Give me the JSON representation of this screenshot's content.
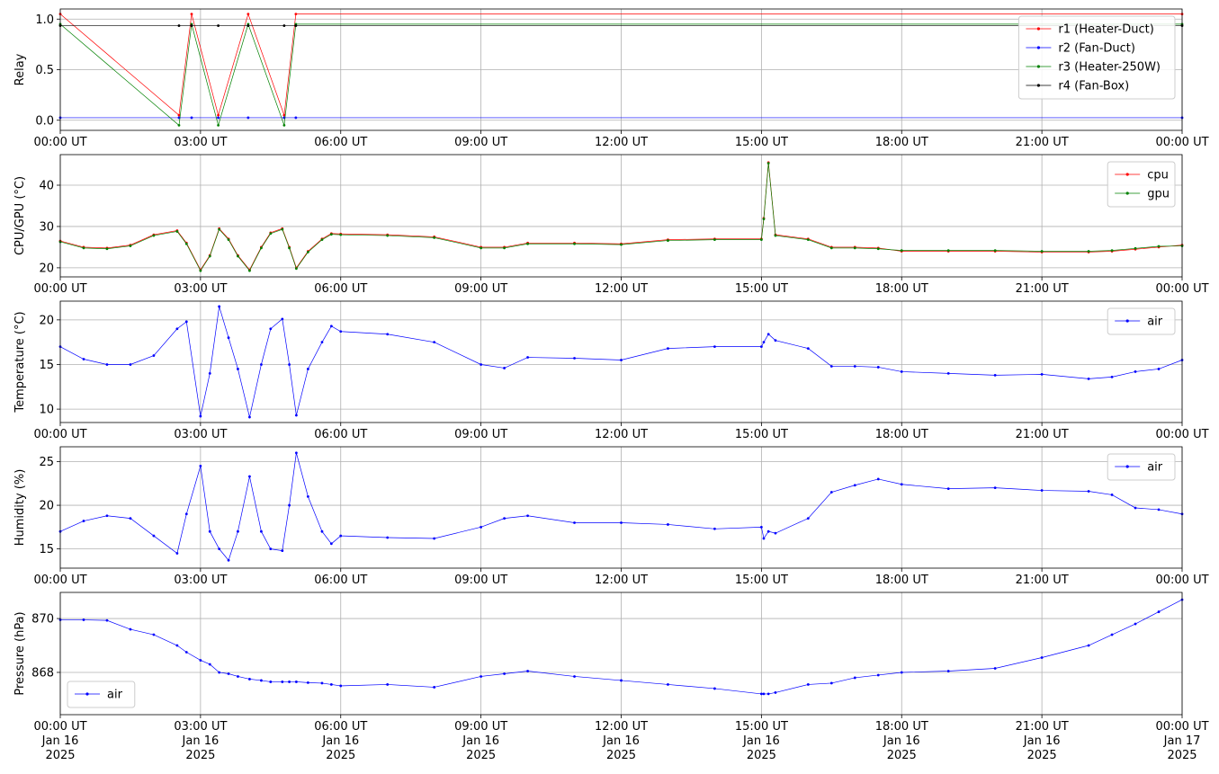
{
  "chart_data": [
    {
      "type": "line",
      "ylabel": "Relay",
      "legend": "upper right",
      "grid": true,
      "x": [
        0,
        2.54,
        2.81,
        3.38,
        4.02,
        4.79,
        5.04,
        24
      ],
      "xlim": [
        0,
        24
      ],
      "xticks": [
        {
          "value": 0,
          "label": "00:00 UT"
        },
        {
          "value": 3,
          "label": "03:00 UT"
        },
        {
          "value": 6,
          "label": "06:00 UT"
        },
        {
          "value": 9,
          "label": "09:00 UT"
        },
        {
          "value": 12,
          "label": "12:00 UT"
        },
        {
          "value": 15,
          "label": "15:00 UT"
        },
        {
          "value": 18,
          "label": "18:00 UT"
        },
        {
          "value": 21,
          "label": "21:00 UT"
        },
        {
          "value": 24,
          "label": "00:00 UT"
        }
      ],
      "ylim": [
        -0.1,
        1.1
      ],
      "yticks": [
        {
          "value": 0,
          "label": "0.0"
        },
        {
          "value": 0.5,
          "label": "0.5"
        },
        {
          "value": 1,
          "label": "1.0"
        }
      ],
      "series": [
        {
          "name": "r1 (Heater-Duct)",
          "color": "#ff0000",
          "values": [
            1.05,
            0.05,
            1.05,
            0.05,
            1.05,
            0.05,
            1.05,
            1.05
          ]
        },
        {
          "name": "r2 (Fan-Duct)",
          "color": "#0000ff",
          "values": [
            0.025,
            0.025,
            0.025,
            0.025,
            0.025,
            0.025,
            0.025,
            0.025
          ]
        },
        {
          "name": "r3 (Heater-250W)",
          "color": "#008000",
          "values": [
            0.95,
            -0.05,
            0.95,
            -0.05,
            0.95,
            -0.05,
            0.95,
            0.95
          ]
        },
        {
          "name": "r4 (Fan-Box)",
          "color": "#000000",
          "values": [
            0.935,
            0.935,
            0.935,
            0.935,
            0.935,
            0.935,
            0.935,
            0.935
          ]
        }
      ]
    },
    {
      "type": "line",
      "ylabel": "CPU/GPU (°C)",
      "legend": "upper right",
      "grid": true,
      "x": [
        0,
        0.5,
        1,
        1.5,
        2,
        2.5,
        2.7,
        3,
        3.2,
        3.4,
        3.6,
        3.8,
        4.05,
        4.3,
        4.5,
        4.75,
        4.9,
        5.05,
        5.3,
        5.6,
        5.8,
        6,
        7,
        8,
        9,
        9.5,
        10,
        11,
        12,
        13,
        14,
        15,
        15.05,
        15.15,
        15.3,
        16,
        16.5,
        17,
        17.5,
        18,
        19,
        20,
        21,
        22,
        22.5,
        23,
        23.5,
        24
      ],
      "xlim": [
        0,
        24
      ],
      "xticks": [
        {
          "value": 0,
          "label": "00:00 UT"
        },
        {
          "value": 3,
          "label": "03:00 UT"
        },
        {
          "value": 6,
          "label": "06:00 UT"
        },
        {
          "value": 9,
          "label": "09:00 UT"
        },
        {
          "value": 12,
          "label": "12:00 UT"
        },
        {
          "value": 15,
          "label": "15:00 UT"
        },
        {
          "value": 18,
          "label": "18:00 UT"
        },
        {
          "value": 21,
          "label": "21:00 UT"
        },
        {
          "value": 24,
          "label": "00:00 UT"
        }
      ],
      "ylim": [
        17.8,
        47.4
      ],
      "yticks": [
        20,
        30,
        40
      ],
      "series": [
        {
          "name": "cpu",
          "color": "#ff0000",
          "values": [
            26.5,
            25,
            24.8,
            25.5,
            28,
            29,
            26,
            19.5,
            23,
            29.5,
            27,
            23,
            19.5,
            25,
            28.5,
            29.5,
            25,
            20,
            24,
            27,
            28.3,
            28.2,
            28,
            27.5,
            25,
            25,
            26,
            26,
            25.8,
            26.8,
            27,
            27,
            32,
            45.5,
            28,
            27,
            25,
            25,
            24.8,
            24,
            24,
            24,
            23.8,
            23.8,
            24,
            24.5,
            25,
            25.5
          ]
        },
        {
          "name": "gpu",
          "color": "#008000",
          "values": [
            26.3,
            24.8,
            24.6,
            25.3,
            27.8,
            28.8,
            25.8,
            19.3,
            22.8,
            29.3,
            26.8,
            22.8,
            19.3,
            24.8,
            28.3,
            29.3,
            24.8,
            19.8,
            23.8,
            26.8,
            28.1,
            28,
            27.8,
            27.3,
            24.8,
            24.8,
            25.8,
            25.8,
            25.6,
            26.6,
            26.8,
            26.8,
            31.8,
            45.3,
            27.8,
            26.8,
            24.8,
            24.8,
            24.6,
            24.2,
            24.2,
            24.2,
            24,
            24,
            24.2,
            24.7,
            25.2,
            25.3
          ]
        }
      ]
    },
    {
      "type": "line",
      "ylabel": "Temperature (°C)",
      "legend": "upper right",
      "grid": true,
      "x": [
        0,
        0.5,
        1,
        1.5,
        2,
        2.5,
        2.7,
        3,
        3.2,
        3.4,
        3.6,
        3.8,
        4.05,
        4.3,
        4.5,
        4.75,
        4.9,
        5.05,
        5.3,
        5.6,
        5.8,
        6,
        7,
        8,
        9,
        9.5,
        10,
        11,
        12,
        13,
        14,
        15,
        15.05,
        15.15,
        15.3,
        16,
        16.5,
        17,
        17.5,
        18,
        19,
        20,
        21,
        22,
        22.5,
        23,
        23.5,
        24
      ],
      "xlim": [
        0,
        24
      ],
      "xticks": [
        {
          "value": 0,
          "label": "00:00 UT"
        },
        {
          "value": 3,
          "label": "03:00 UT"
        },
        {
          "value": 6,
          "label": "06:00 UT"
        },
        {
          "value": 9,
          "label": "09:00 UT"
        },
        {
          "value": 12,
          "label": "12:00 UT"
        },
        {
          "value": 15,
          "label": "15:00 UT"
        },
        {
          "value": 18,
          "label": "18:00 UT"
        },
        {
          "value": 21,
          "label": "21:00 UT"
        },
        {
          "value": 24,
          "label": "00:00 UT"
        }
      ],
      "ylim": [
        8.5,
        22.1
      ],
      "yticks": [
        10,
        15,
        20
      ],
      "series": [
        {
          "name": "air",
          "color": "#0000ff",
          "values": [
            17,
            15.6,
            15,
            15,
            16,
            19,
            19.8,
            9.2,
            14,
            21.5,
            18,
            14.5,
            9.1,
            15,
            19,
            20.1,
            15,
            9.3,
            14.5,
            17.5,
            19.3,
            18.7,
            18.4,
            17.5,
            15,
            14.6,
            15.8,
            15.7,
            15.5,
            16.8,
            17,
            17,
            17.5,
            18.4,
            17.7,
            16.8,
            14.8,
            14.8,
            14.7,
            14.2,
            14,
            13.8,
            13.9,
            13.4,
            13.6,
            14.2,
            14.5,
            15.5
          ]
        }
      ]
    },
    {
      "type": "line",
      "ylabel": "Humidity (%)",
      "legend": "upper right",
      "grid": true,
      "x": [
        0,
        0.5,
        1,
        1.5,
        2,
        2.5,
        2.7,
        3,
        3.2,
        3.4,
        3.6,
        3.8,
        4.05,
        4.3,
        4.5,
        4.75,
        4.9,
        5.05,
        5.3,
        5.6,
        5.8,
        6,
        7,
        8,
        9,
        9.5,
        10,
        11,
        12,
        13,
        14,
        15,
        15.05,
        15.15,
        15.3,
        16,
        16.5,
        17,
        17.5,
        18,
        19,
        20,
        21,
        22,
        22.5,
        23,
        23.5,
        24
      ],
      "xlim": [
        0,
        24
      ],
      "xticks": [
        {
          "value": 0,
          "label": "00:00 UT"
        },
        {
          "value": 3,
          "label": "03:00 UT"
        },
        {
          "value": 6,
          "label": "06:00 UT"
        },
        {
          "value": 9,
          "label": "09:00 UT"
        },
        {
          "value": 12,
          "label": "12:00 UT"
        },
        {
          "value": 15,
          "label": "15:00 UT"
        },
        {
          "value": 18,
          "label": "18:00 UT"
        },
        {
          "value": 21,
          "label": "21:00 UT"
        },
        {
          "value": 24,
          "label": "00:00 UT"
        }
      ],
      "ylim": [
        12.8,
        26.7
      ],
      "yticks": [
        15,
        20,
        25
      ],
      "series": [
        {
          "name": "air",
          "color": "#0000ff",
          "values": [
            17,
            18.2,
            18.8,
            18.5,
            16.5,
            14.5,
            19,
            24.5,
            17,
            15,
            13.7,
            17,
            23.3,
            17,
            15,
            14.8,
            20,
            26,
            21,
            17,
            15.6,
            16.5,
            16.3,
            16.2,
            17.5,
            18.5,
            18.8,
            18,
            18,
            17.8,
            17.3,
            17.5,
            16.2,
            17,
            16.8,
            18.5,
            21.5,
            22.3,
            23,
            22.4,
            21.9,
            22,
            21.7,
            21.6,
            21.2,
            19.7,
            19.5,
            19
          ]
        }
      ]
    },
    {
      "type": "line",
      "ylabel": "Pressure (hPa)",
      "legend": "lower left",
      "grid": true,
      "x": [
        0,
        0.5,
        1,
        1.5,
        2,
        2.5,
        2.7,
        3,
        3.2,
        3.4,
        3.6,
        3.8,
        4.05,
        4.3,
        4.5,
        4.75,
        4.9,
        5.05,
        5.3,
        5.6,
        5.8,
        6,
        7,
        8,
        9,
        9.5,
        10,
        11,
        12,
        13,
        14,
        15,
        15.05,
        15.15,
        15.3,
        16,
        16.5,
        17,
        17.5,
        18,
        19,
        20,
        21,
        22,
        22.5,
        23,
        23.5,
        24
      ],
      "xlim": [
        0,
        24
      ],
      "xticks": [
        {
          "value": 0,
          "label": "00:00 UT\nJan 16\n2025"
        },
        {
          "value": 3,
          "label": "03:00 UT\nJan 16\n2025"
        },
        {
          "value": 6,
          "label": "06:00 UT\nJan 16\n2025"
        },
        {
          "value": 9,
          "label": "09:00 UT\nJan 16\n2025"
        },
        {
          "value": 12,
          "label": "12:00 UT\nJan 16\n2025"
        },
        {
          "value": 15,
          "label": "15:00 UT\nJan 16\n2025"
        },
        {
          "value": 18,
          "label": "18:00 UT\nJan 16\n2025"
        },
        {
          "value": 21,
          "label": "21:00 UT\nJan 16\n2025"
        },
        {
          "value": 24,
          "label": "00:00 UT\nJan 17\n2025"
        }
      ],
      "ylim": [
        866.43,
        870.97
      ],
      "yticks": [
        868,
        870
      ],
      "series": [
        {
          "name": "air",
          "color": "#0000ff",
          "values": [
            869.95,
            869.95,
            869.93,
            869.6,
            869.4,
            869,
            868.75,
            868.45,
            868.3,
            868,
            867.95,
            867.85,
            867.75,
            867.7,
            867.65,
            867.65,
            867.65,
            867.65,
            867.62,
            867.6,
            867.55,
            867.5,
            867.55,
            867.45,
            867.85,
            867.95,
            868.05,
            867.85,
            867.7,
            867.55,
            867.4,
            867.2,
            867.2,
            867.2,
            867.25,
            867.55,
            867.6,
            867.8,
            867.9,
            868,
            868.05,
            868.15,
            868.55,
            869,
            869.4,
            869.8,
            870.25,
            870.7
          ]
        }
      ]
    }
  ]
}
